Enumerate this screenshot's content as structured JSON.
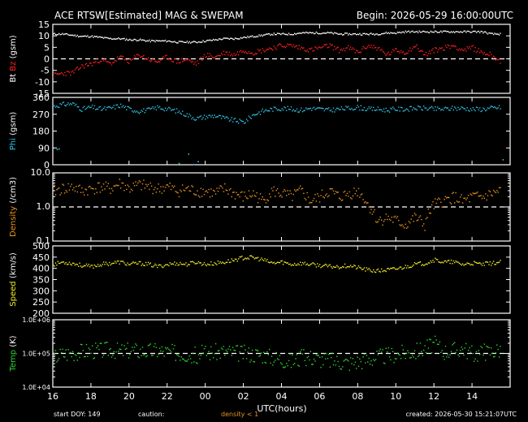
{
  "header": {
    "title": "ACE RTSW[Estimated] MAG & SWEPAM",
    "begin": "Begin: 2026-05-29 16:00:00UTC"
  },
  "footer": {
    "start_doy": "start DOY: 149",
    "caution": "caution:",
    "density_note": "density < 1",
    "created": "created: 2026-05-30 15:21:07UTC"
  },
  "colors": {
    "bg": "#000000",
    "axis": "#ffffff",
    "bt": "#ffffff",
    "bz": "#ff2020",
    "phi": "#2ec4e8",
    "density": "#e8941e",
    "speed": "#f2ec28",
    "temp": "#2fd82f"
  },
  "chart_data": [
    {
      "type": "line",
      "id": "mag",
      "ylabel_parts": [
        "Bt",
        "Bz",
        "(gsm)"
      ],
      "ylim": [
        -15,
        15
      ],
      "yticks": [
        -15,
        -10,
        -5,
        0,
        5,
        10,
        15
      ],
      "dashed_ref": 0,
      "x": [
        16,
        16.5,
        17,
        17.5,
        18,
        18.5,
        19,
        19.5,
        20,
        20.5,
        21,
        21.5,
        22,
        22.5,
        23,
        23.5,
        24,
        24.5,
        25,
        25.5,
        26,
        26.5,
        27,
        27.5,
        28,
        28.5,
        29,
        29.5,
        30,
        30.5,
        31,
        31.5,
        32,
        32.5,
        33,
        33.5,
        34,
        34.5,
        35,
        35.5,
        36,
        36.5,
        37,
        37.5,
        38,
        38.5,
        39,
        39.5
      ],
      "series": [
        {
          "name": "Bt",
          "values": [
            11,
            11,
            10.5,
            10,
            10,
            9.5,
            9,
            9,
            8.5,
            8.5,
            8,
            8,
            8,
            7.5,
            7.5,
            7.5,
            8,
            8.5,
            9,
            9,
            9.5,
            10,
            10.5,
            11,
            11,
            11,
            11.5,
            11.5,
            11.5,
            11.5,
            11,
            11,
            11,
            11,
            11,
            11.5,
            11.5,
            12,
            12,
            12,
            12,
            12,
            12,
            12,
            12,
            12,
            11,
            11
          ]
        },
        {
          "name": "Bz",
          "values": [
            -7,
            -6,
            -6,
            -3,
            -2,
            0,
            -2,
            1,
            -1,
            2,
            0,
            -1,
            1,
            -1,
            0,
            -2,
            2,
            1,
            3,
            2,
            4,
            3,
            4,
            5,
            6,
            6,
            5,
            4,
            5,
            6,
            4,
            5,
            3,
            6,
            5,
            2,
            4,
            3,
            6,
            2,
            4,
            5,
            6,
            4,
            5,
            3,
            2,
            -1
          ]
        }
      ]
    },
    {
      "type": "scatter",
      "id": "phi",
      "ylabel_parts": [
        "Phi",
        "(gsm)"
      ],
      "ylim": [
        0,
        360
      ],
      "yticks": [
        0,
        90,
        180,
        270,
        360
      ],
      "x": [
        16,
        16.5,
        17,
        17.5,
        18,
        18.5,
        19,
        19.5,
        20,
        20.5,
        21,
        21.5,
        22,
        22.5,
        23,
        23.5,
        24,
        24.5,
        25,
        25.5,
        26,
        26.5,
        27,
        27.5,
        28,
        28.5,
        29,
        29.5,
        30,
        30.5,
        31,
        31.5,
        32,
        32.5,
        33,
        33.5,
        34,
        34.5,
        35,
        35.5,
        36,
        36.5,
        37,
        37.5,
        38,
        38.5,
        39,
        39.5
      ],
      "values": [
        315,
        325,
        330,
        300,
        310,
        300,
        305,
        320,
        300,
        290,
        295,
        310,
        300,
        290,
        270,
        250,
        260,
        265,
        250,
        240,
        230,
        270,
        290,
        300,
        305,
        300,
        295,
        305,
        300,
        295,
        300,
        305,
        310,
        300,
        300,
        295,
        300,
        300,
        305,
        305,
        300,
        300,
        305,
        305,
        300,
        300,
        305,
        310
      ],
      "outliers": [
        {
          "x": 16.2,
          "y": 85
        },
        {
          "x": 16.3,
          "y": 88
        },
        {
          "x": 22.6,
          "y": 10
        },
        {
          "x": 23.4,
          "y": 5
        },
        {
          "x": 23.6,
          "y": 20
        },
        {
          "x": 23.1,
          "y": 60
        },
        {
          "x": 39.6,
          "y": 30
        }
      ]
    },
    {
      "type": "scatter",
      "id": "density",
      "yscale": "log",
      "ylabel_parts": [
        "Density",
        "(/cm3)"
      ],
      "ylim": [
        0.1,
        10
      ],
      "ytick_labels": [
        "0.1",
        "1.0",
        "10.0"
      ],
      "dashed_ref": 1,
      "x": [
        16,
        16.5,
        17,
        17.5,
        18,
        18.5,
        19,
        19.5,
        20,
        20.5,
        21,
        21.5,
        22,
        22.5,
        23,
        23.5,
        24,
        24.5,
        25,
        25.5,
        26,
        26.5,
        27,
        27.5,
        28,
        28.5,
        29,
        29.5,
        30,
        30.5,
        31,
        31.5,
        32,
        32.5,
        33,
        33.5,
        34,
        34.5,
        35,
        35.5,
        36,
        36.5,
        37,
        37.5,
        38,
        38.5,
        39,
        39.5
      ],
      "values": [
        3,
        3.5,
        4,
        3,
        3.5,
        4,
        3.5,
        5,
        3.5,
        4.5,
        4,
        3.5,
        4,
        3,
        3.5,
        3,
        3,
        2.5,
        3.5,
        2.5,
        2,
        2.5,
        1.5,
        3,
        2.5,
        2,
        3,
        1.5,
        2,
        3,
        2,
        2.5,
        3,
        1.2,
        0.4,
        0.5,
        0.4,
        0.3,
        0.5,
        0.3,
        1.2,
        1.5,
        2,
        1.5,
        2,
        2,
        2.5,
        3
      ]
    },
    {
      "type": "scatter",
      "id": "speed",
      "ylabel_parts": [
        "Speed",
        "(km/s)"
      ],
      "ylim": [
        200,
        500
      ],
      "yticks": [
        200,
        250,
        300,
        350,
        400,
        450,
        500
      ],
      "x": [
        16,
        16.5,
        17,
        17.5,
        18,
        18.5,
        19,
        19.5,
        20,
        20.5,
        21,
        21.5,
        22,
        22.5,
        23,
        23.5,
        24,
        24.5,
        25,
        25.5,
        26,
        26.5,
        27,
        27.5,
        28,
        28.5,
        29,
        29.5,
        30,
        30.5,
        31,
        31.5,
        32,
        32.5,
        33,
        33.5,
        34,
        34.5,
        35,
        35.5,
        36,
        36.5,
        37,
        37.5,
        38,
        38.5,
        39,
        39.5
      ],
      "values": [
        420,
        430,
        425,
        415,
        410,
        420,
        425,
        430,
        420,
        425,
        420,
        410,
        420,
        425,
        420,
        430,
        420,
        425,
        430,
        440,
        450,
        450,
        440,
        425,
        430,
        420,
        425,
        420,
        415,
        410,
        410,
        415,
        405,
        395,
        390,
        395,
        400,
        410,
        420,
        425,
        440,
        430,
        430,
        420,
        425,
        420,
        425,
        430
      ]
    },
    {
      "type": "scatter",
      "id": "temp",
      "yscale": "log",
      "ylabel_parts": [
        "Temp",
        "(K)"
      ],
      "ylim": [
        10000,
        1000000
      ],
      "ytick_labels": [
        "1.0E+04",
        "1.0E+05",
        "1.0E+06"
      ],
      "dashed_ref": 100000,
      "x": [
        16,
        16.5,
        17,
        17.5,
        18,
        18.5,
        19,
        19.5,
        20,
        20.5,
        21,
        21.5,
        22,
        22.5,
        23,
        23.5,
        24,
        24.5,
        25,
        25.5,
        26,
        26.5,
        27,
        27.5,
        28,
        28.5,
        29,
        29.5,
        30,
        30.5,
        31,
        31.5,
        32,
        32.5,
        33,
        33.5,
        34,
        34.5,
        35,
        35.5,
        36,
        36.5,
        37,
        37.5,
        38,
        38.5,
        39,
        39.5
      ],
      "values": [
        80000,
        100000,
        110000,
        120000,
        130000,
        125000,
        140000,
        120000,
        130000,
        125000,
        120000,
        130000,
        115000,
        110000,
        100000,
        90000,
        110000,
        115000,
        120000,
        110000,
        105000,
        100000,
        95000,
        80000,
        70000,
        60000,
        75000,
        80000,
        70000,
        65000,
        60000,
        55000,
        60000,
        70000,
        80000,
        90000,
        100000,
        110000,
        120000,
        150000,
        200000,
        120000,
        130000,
        150000,
        100000,
        110000,
        120000,
        140000
      ]
    }
  ],
  "x_axis": {
    "xlabel": "UTC(hours)",
    "xlim": [
      16,
      40
    ],
    "tick_labels": [
      "16",
      "18",
      "20",
      "22",
      "00",
      "02",
      "04",
      "06",
      "08",
      "10",
      "12",
      "14"
    ]
  }
}
